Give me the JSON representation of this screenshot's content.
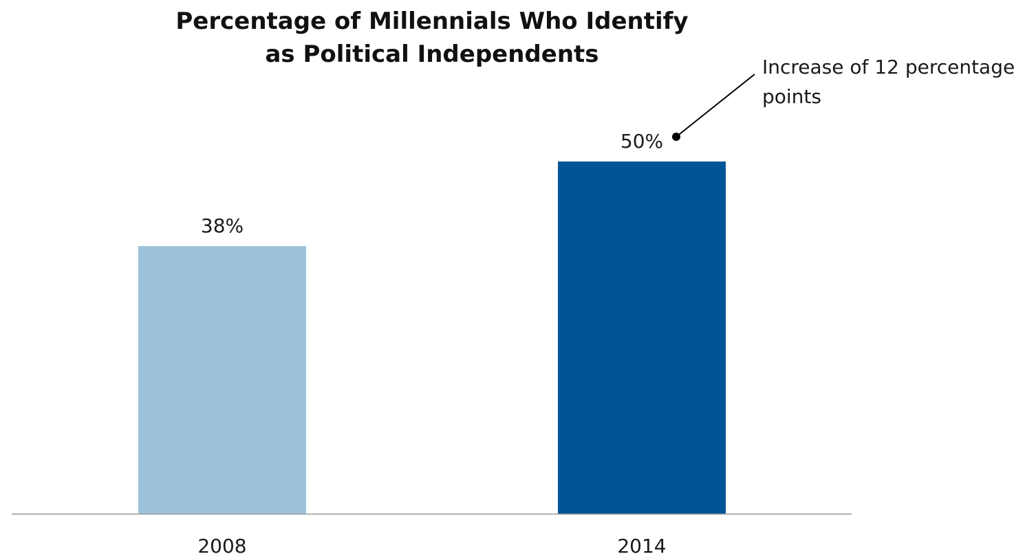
{
  "chart_data": {
    "type": "bar",
    "title": [
      "Percentage of Millennials Who Identify",
      "as Political Independents"
    ],
    "categories": [
      "2008",
      "2014"
    ],
    "values": [
      38,
      50
    ],
    "value_labels": [
      "38%",
      "50%"
    ],
    "bar_colors": [
      "#9dc3dc",
      "#005596"
    ],
    "ylim": [
      0,
      50
    ],
    "grid": false,
    "legend": "none",
    "annotation": {
      "lines": [
        "Increase of 12 percentage",
        "points"
      ],
      "target_category": "2014"
    },
    "axis_color": "#999999",
    "text_color": "#1a1a1a"
  }
}
